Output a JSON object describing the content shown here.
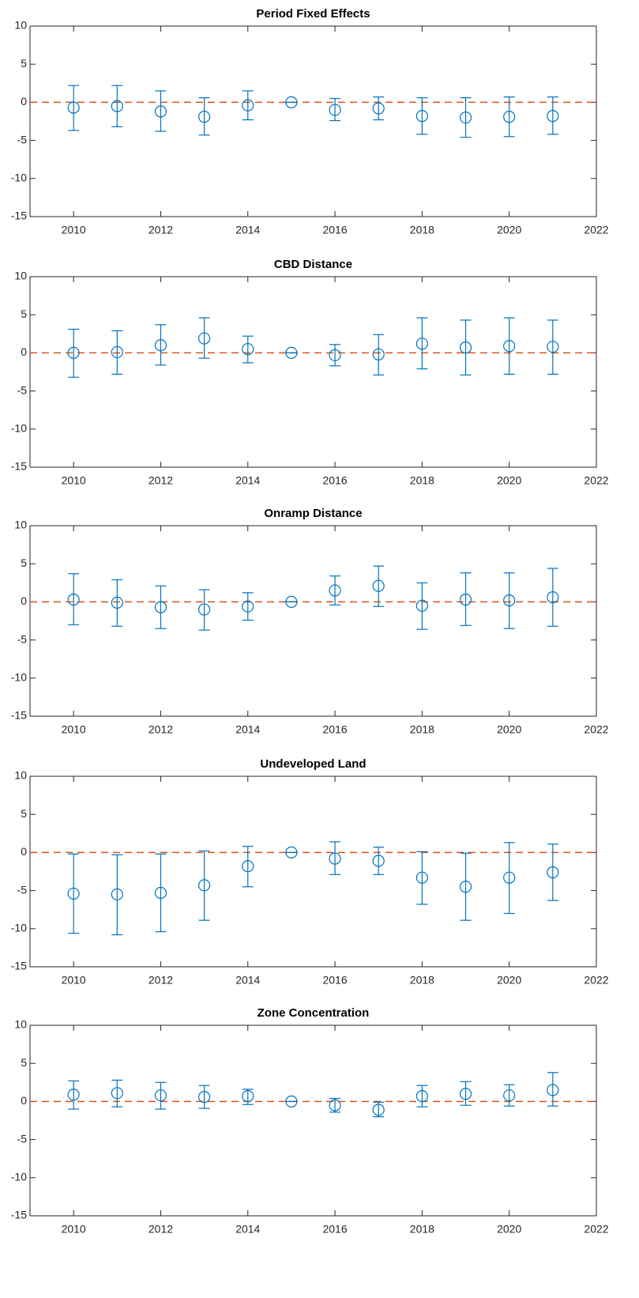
{
  "chart_data": [
    {
      "type": "errorbar",
      "title": "Period Fixed Effects",
      "color": "#0072bd",
      "hline": 0,
      "hline_color": "#d95319",
      "x": [
        2010,
        2011,
        2012,
        2013,
        2014,
        2015,
        2016,
        2017,
        2018,
        2019,
        2020,
        2021
      ],
      "values": [
        -0.7,
        -0.5,
        -1.2,
        -1.9,
        -0.4,
        0,
        -1.0,
        -0.8,
        -1.8,
        -2.0,
        -1.9,
        -1.8
      ],
      "lower": [
        -3.7,
        -3.2,
        -3.8,
        -4.3,
        -2.3,
        0,
        -2.4,
        -2.3,
        -4.2,
        -4.6,
        -4.5,
        -4.2
      ],
      "upper": [
        2.2,
        2.2,
        1.5,
        0.6,
        1.5,
        0,
        0.5,
        0.7,
        0.6,
        0.6,
        0.7,
        0.7
      ],
      "xlim": [
        2009,
        2022
      ],
      "xticks": [
        2010,
        2012,
        2014,
        2016,
        2018,
        2020,
        2022
      ],
      "ylim": [
        -15,
        10
      ],
      "yticks": [
        -15,
        -10,
        -5,
        0,
        5,
        10
      ]
    },
    {
      "type": "errorbar",
      "title": "CBD Distance",
      "color": "#0072bd",
      "hline": 0,
      "hline_color": "#d95319",
      "x": [
        2010,
        2011,
        2012,
        2013,
        2014,
        2015,
        2016,
        2017,
        2018,
        2019,
        2020,
        2021
      ],
      "values": [
        0,
        0.1,
        1.0,
        1.9,
        0.5,
        0,
        -0.3,
        -0.2,
        1.2,
        0.7,
        0.9,
        0.8
      ],
      "lower": [
        -3.2,
        -2.8,
        -1.6,
        -0.7,
        -1.3,
        0,
        -1.7,
        -2.9,
        -2.1,
        -2.9,
        -2.8,
        -2.8
      ],
      "upper": [
        3.1,
        2.9,
        3.7,
        4.6,
        2.2,
        0,
        1.1,
        2.4,
        4.6,
        4.3,
        4.6,
        4.3
      ],
      "xlim": [
        2009,
        2022
      ],
      "xticks": [
        2010,
        2012,
        2014,
        2016,
        2018,
        2020,
        2022
      ],
      "ylim": [
        -15,
        10
      ],
      "yticks": [
        -15,
        -10,
        -5,
        0,
        5,
        10
      ]
    },
    {
      "type": "errorbar",
      "title": "Onramp Distance",
      "color": "#0072bd",
      "hline": 0,
      "hline_color": "#d95319",
      "x": [
        2010,
        2011,
        2012,
        2013,
        2014,
        2015,
        2016,
        2017,
        2018,
        2019,
        2020,
        2021
      ],
      "values": [
        0.3,
        -0.1,
        -0.7,
        -1.0,
        -0.6,
        0,
        1.5,
        2.1,
        -0.5,
        0.3,
        0.2,
        0.6
      ],
      "lower": [
        -3.0,
        -3.2,
        -3.5,
        -3.7,
        -2.4,
        0,
        -0.4,
        -0.6,
        -3.6,
        -3.1,
        -3.5,
        -3.2
      ],
      "upper": [
        3.7,
        2.9,
        2.1,
        1.6,
        1.2,
        0,
        3.4,
        4.7,
        2.5,
        3.8,
        3.8,
        4.4
      ],
      "xlim": [
        2009,
        2022
      ],
      "xticks": [
        2010,
        2012,
        2014,
        2016,
        2018,
        2020,
        2022
      ],
      "ylim": [
        -15,
        10
      ],
      "yticks": [
        -15,
        -10,
        -5,
        0,
        5,
        10
      ]
    },
    {
      "type": "errorbar",
      "title": "Undeveloped Land",
      "color": "#0072bd",
      "hline": 0,
      "hline_color": "#d95319",
      "x": [
        2010,
        2011,
        2012,
        2013,
        2014,
        2015,
        2016,
        2017,
        2018,
        2019,
        2020,
        2021
      ],
      "values": [
        -5.4,
        -5.5,
        -5.3,
        -4.3,
        -1.8,
        0,
        -0.8,
        -1.1,
        -3.3,
        -4.5,
        -3.3,
        -2.6
      ],
      "lower": [
        -10.6,
        -10.8,
        -10.4,
        -8.9,
        -4.5,
        0,
        -2.9,
        -2.9,
        -6.8,
        -8.9,
        -8.0,
        -6.3
      ],
      "upper": [
        -0.2,
        -0.3,
        -0.2,
        0.2,
        0.8,
        0,
        1.4,
        0.7,
        0.1,
        -0.1,
        1.3,
        1.1
      ],
      "xlim": [
        2009,
        2022
      ],
      "xticks": [
        2010,
        2012,
        2014,
        2016,
        2018,
        2020,
        2022
      ],
      "ylim": [
        -15,
        10
      ],
      "yticks": [
        -15,
        -10,
        -5,
        0,
        5,
        10
      ]
    },
    {
      "type": "errorbar",
      "title": "Zone Concentration",
      "color": "#0072bd",
      "hline": 0,
      "hline_color": "#d95319",
      "x": [
        2010,
        2011,
        2012,
        2013,
        2014,
        2015,
        2016,
        2017,
        2018,
        2019,
        2020,
        2021
      ],
      "values": [
        0.9,
        1.1,
        0.8,
        0.6,
        0.7,
        0,
        -0.5,
        -1.1,
        0.7,
        1.0,
        0.8,
        1.5
      ],
      "lower": [
        -1.0,
        -0.7,
        -1.0,
        -0.9,
        -0.4,
        0,
        -1.4,
        -2.0,
        -0.7,
        -0.5,
        -0.6,
        -0.6
      ],
      "upper": [
        2.7,
        2.8,
        2.5,
        2.1,
        1.6,
        0,
        0.4,
        -0.1,
        2.1,
        2.6,
        2.2,
        3.8
      ],
      "xlim": [
        2009,
        2022
      ],
      "xticks": [
        2010,
        2012,
        2014,
        2016,
        2018,
        2020,
        2022
      ],
      "ylim": [
        -15,
        10
      ],
      "yticks": [
        -15,
        -10,
        -5,
        0,
        5,
        10
      ]
    }
  ]
}
